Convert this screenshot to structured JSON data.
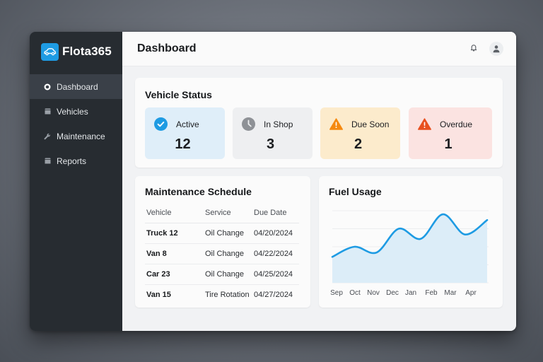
{
  "app": {
    "name": "Flota365",
    "logo_icon": "car-icon",
    "accent_color": "#1e9be3"
  },
  "sidebar": {
    "items": [
      {
        "label": "Dashboard",
        "icon": "circle-icon",
        "active": true
      },
      {
        "label": "Vehicles",
        "icon": "document-icon",
        "active": false
      },
      {
        "label": "Maintenance",
        "icon": "wrench-icon",
        "active": false
      },
      {
        "label": "Reports",
        "icon": "document-icon",
        "active": false
      }
    ]
  },
  "header": {
    "title": "Dashboard",
    "icons": [
      "bell-icon",
      "user-icon"
    ]
  },
  "vehicle_status": {
    "title": "Vehicle Status",
    "tiles": [
      {
        "label": "Active",
        "value": "12",
        "icon": "check-circle-icon",
        "bg": "#dfeef9",
        "icon_color": "#1e9be3"
      },
      {
        "label": "In Shop",
        "value": "3",
        "icon": "clock-icon",
        "bg": "#eeeff1",
        "icon_color": "#8e9196"
      },
      {
        "label": "Due Soon",
        "value": "2",
        "icon": "warning-icon",
        "bg": "#fcebcc",
        "icon_color": "#f5890f"
      },
      {
        "label": "Overdue",
        "value": "1",
        "icon": "warning-icon",
        "bg": "#fbe3e1",
        "icon_color": "#e8501f"
      }
    ]
  },
  "maintenance_schedule": {
    "title": "Maintenance Schedule",
    "columns": [
      "Vehicle",
      "Service",
      "Due Date"
    ],
    "rows": [
      {
        "vehicle": "Truck 12",
        "service": "Oil Change",
        "due": "04/20/2024"
      },
      {
        "vehicle": "Van 8",
        "service": "Oil Change",
        "due": "04/22/2024"
      },
      {
        "vehicle": "Car 23",
        "service": "Oil Change",
        "due": "04/25/2024"
      },
      {
        "vehicle": "Van 15",
        "service": "Tire Rotation",
        "due": "04/27/2024"
      }
    ]
  },
  "fuel_usage": {
    "title": "Fuel Usage",
    "line_color": "#1e9be3",
    "fill_color": "#dcedf8"
  },
  "chart_data": {
    "type": "area",
    "title": "Fuel Usage",
    "categories": [
      "Sep",
      "Oct",
      "Nov",
      "Dec",
      "Jan",
      "Feb",
      "Mar",
      "Apr"
    ],
    "series": [
      {
        "name": "Fuel Usage",
        "values": [
          36,
          50,
          42,
          75,
          61,
          95,
          67,
          87
        ]
      }
    ],
    "xlabel": "",
    "ylabel": "",
    "ylim": [
      0,
      100
    ],
    "grid": true,
    "legend": "none",
    "smooth": true,
    "notes": "No y-axis tick labels shown; values are relative estimates on 0-100 scale."
  }
}
